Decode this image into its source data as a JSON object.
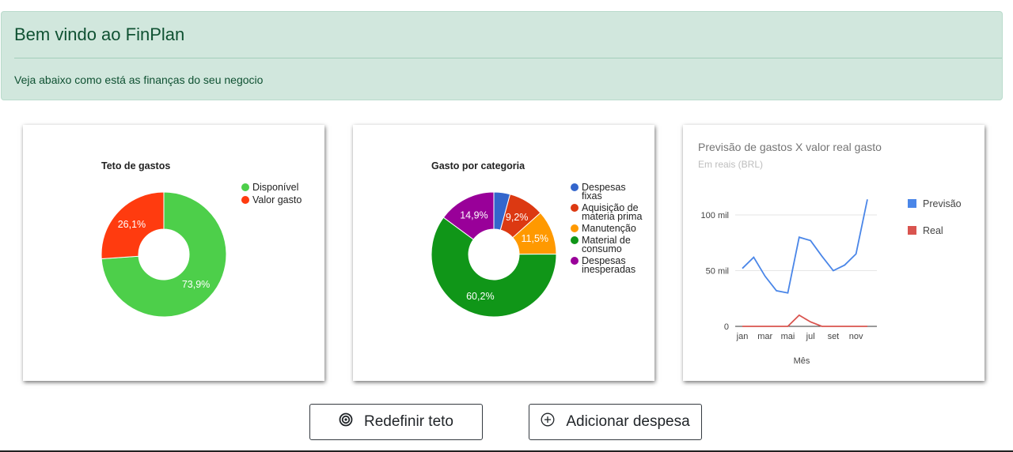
{
  "header": {
    "title": "Bem vindo ao FinPlan",
    "subtitle": "Veja abaixo como está as finanças do seu negocio"
  },
  "colors": {
    "alert_bg": "#d1e7dd",
    "alert_text": "#0f5132",
    "green": "#4dcf4a",
    "red": "#ff3b0f",
    "blue": "#3366cc",
    "dark_red": "#dc3912",
    "orange": "#ff9900",
    "dark_green": "#109618",
    "purple": "#990099",
    "line_blue": "#4a86e8",
    "line_red": "#d9544f"
  },
  "chart_data": [
    {
      "type": "pie",
      "variant": "donut",
      "title": "Teto de gastos",
      "slices": [
        {
          "label": "Disponível",
          "value": 73.9,
          "display": "73,9%",
          "color": "#4dcf4a"
        },
        {
          "label": "Valor gasto",
          "value": 26.1,
          "display": "26,1%",
          "color": "#ff3b0f"
        }
      ],
      "legend": "right"
    },
    {
      "type": "pie",
      "variant": "donut",
      "title": "Gasto por categoria",
      "slices": [
        {
          "label": "Despesas fixas",
          "legend_lines": [
            "Despesas",
            "fixas"
          ],
          "value": 4.2,
          "display": "",
          "color": "#3366cc"
        },
        {
          "label": "Aquisição de materia prima",
          "legend_lines": [
            "Aquisição de",
            "materia prima"
          ],
          "value": 9.2,
          "display": "9,2%",
          "color": "#dc3912"
        },
        {
          "label": "Manutenção",
          "legend_lines": [
            "Manutenção"
          ],
          "value": 11.5,
          "display": "11,5%",
          "color": "#ff9900"
        },
        {
          "label": "Material de consumo",
          "legend_lines": [
            "Material de",
            "consumo"
          ],
          "value": 60.2,
          "display": "60,2%",
          "color": "#109618"
        },
        {
          "label": "Despesas inesperadas",
          "legend_lines": [
            "Despesas",
            "inesperadas"
          ],
          "value": 14.9,
          "display": "14,9%",
          "color": "#990099"
        }
      ],
      "legend": "right"
    },
    {
      "type": "line",
      "title": "Previsão de gastos X valor real gasto",
      "subtitle": "Em reais (BRL)",
      "xlabel": "Mês",
      "ylabel": "",
      "ylim": [
        0,
        120000
      ],
      "yticks": [
        {
          "value": 0,
          "label": "0"
        },
        {
          "value": 50000,
          "label": "50 mil"
        },
        {
          "value": 100000,
          "label": "100 mil"
        }
      ],
      "x": [
        1,
        2,
        3,
        4,
        5,
        6,
        7,
        8,
        9,
        10,
        11,
        12
      ],
      "xticks": [
        {
          "x": 1,
          "label": "jan"
        },
        {
          "x": 3,
          "label": "mar"
        },
        {
          "x": 5,
          "label": "mai"
        },
        {
          "x": 7,
          "label": "jul"
        },
        {
          "x": 9,
          "label": "set"
        },
        {
          "x": 11,
          "label": "nov"
        }
      ],
      "series": [
        {
          "name": "Previsão",
          "color": "#4a86e8",
          "values": [
            52000,
            62000,
            45000,
            32000,
            30000,
            80000,
            77000,
            63000,
            50000,
            55000,
            65000,
            114000
          ]
        },
        {
          "name": "Real",
          "color": "#d9544f",
          "values": [
            0,
            0,
            0,
            0,
            0,
            10000,
            4000,
            0,
            0,
            0,
            0,
            0
          ]
        }
      ],
      "legend": "right"
    }
  ],
  "actions": {
    "reset_label": "Redefinir teto",
    "add_label": "Adicionar despesa"
  }
}
